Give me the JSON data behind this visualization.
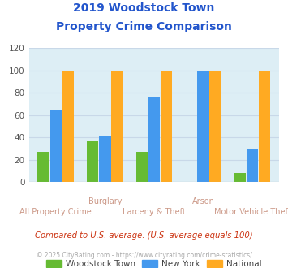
{
  "title_line1": "2019 Woodstock Town",
  "title_line2": "Property Crime Comparison",
  "title_color": "#2255cc",
  "categories": [
    "All Property Crime",
    "Burglary",
    "Larceny & Theft",
    "Arson",
    "Motor Vehicle Theft"
  ],
  "woodstock": [
    27,
    37,
    27,
    0,
    8
  ],
  "newyork": [
    65,
    42,
    76,
    100,
    30
  ],
  "national": [
    100,
    100,
    100,
    100,
    100
  ],
  "color_woodstock": "#66bb33",
  "color_newyork": "#4499ee",
  "color_national": "#ffaa22",
  "bg_chart": "#ddeef5",
  "ylim": [
    0,
    120
  ],
  "yticks": [
    0,
    20,
    40,
    60,
    80,
    100,
    120
  ],
  "grid_color": "#c8d8e8",
  "xlabel_color": "#cc9988",
  "xlabel_fontsize": 7.0,
  "legend_labels": [
    "Woodstock Town",
    "New York",
    "National"
  ],
  "footnote1": "Compared to U.S. average. (U.S. average equals 100)",
  "footnote2": "© 2025 CityRating.com - https://www.cityrating.com/crime-statistics/",
  "footnote1_color": "#cc3311",
  "footnote2_color": "#aaaaaa"
}
